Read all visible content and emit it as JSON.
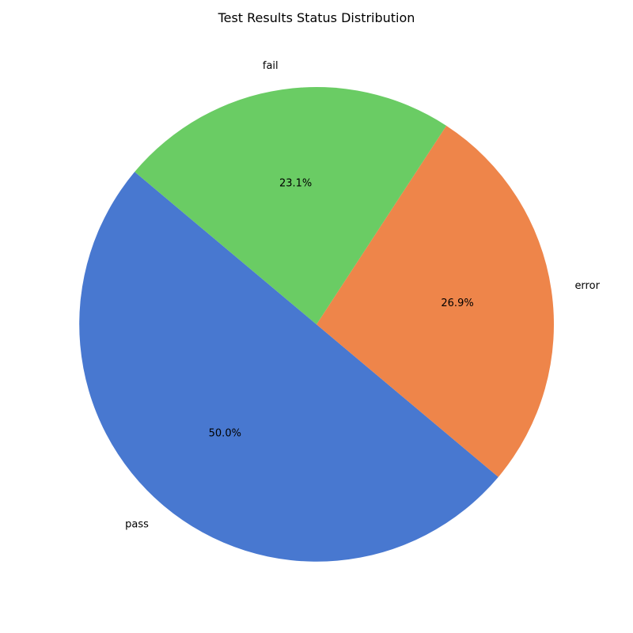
{
  "chart_data": {
    "type": "pie",
    "title": "Test Results Status Distribution",
    "slices": [
      {
        "label": "pass",
        "value": 50.0,
        "percent_label": "50.0%",
        "color": "#4878d0"
      },
      {
        "label": "error",
        "value": 26.9,
        "percent_label": "26.9%",
        "color": "#ee854a"
      },
      {
        "label": "fail",
        "value": 23.1,
        "percent_label": "23.1%",
        "color": "#6acc64"
      }
    ],
    "start_angle_deg": 140,
    "counterclockwise": true,
    "legend": "none"
  }
}
